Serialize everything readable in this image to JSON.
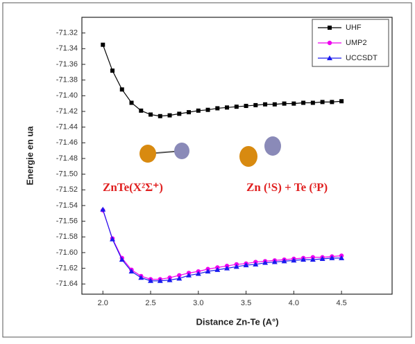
{
  "chart_data": {
    "type": "line",
    "x_label": "Distance Zn-Te (A°)",
    "y_label": "Energie en ua",
    "x": [
      2.0,
      2.1,
      2.2,
      2.3,
      2.4,
      2.5,
      2.6,
      2.7,
      2.8,
      2.9,
      3.0,
      3.1,
      3.2,
      3.3,
      3.4,
      3.5,
      3.6,
      3.7,
      3.8,
      3.9,
      4.0,
      4.1,
      4.2,
      4.3,
      4.4,
      4.5
    ],
    "series": [
      {
        "name": "UHF",
        "color": "#000000",
        "marker": "square",
        "values": [
          -71.335,
          -71.368,
          -71.392,
          -71.409,
          -71.419,
          -71.424,
          -71.426,
          -71.425,
          -71.423,
          -71.421,
          -71.419,
          -71.418,
          -71.416,
          -71.415,
          -71.414,
          -71.413,
          -71.412,
          -71.411,
          -71.411,
          -71.41,
          -71.41,
          -71.409,
          -71.409,
          -71.408,
          -71.408,
          -71.407
        ]
      },
      {
        "name": "UMP2",
        "color": "#ee00ee",
        "marker": "circle",
        "values": [
          -71.546,
          -71.582,
          -71.607,
          -71.622,
          -71.63,
          -71.634,
          -71.634,
          -71.632,
          -71.629,
          -71.626,
          -71.624,
          -71.621,
          -71.619,
          -71.617,
          -71.615,
          -71.614,
          -71.612,
          -71.611,
          -71.61,
          -71.609,
          -71.608,
          -71.607,
          -71.606,
          -71.606,
          -71.605,
          -71.604
        ]
      },
      {
        "name": "UCCSDT",
        "color": "#1a1aee",
        "marker": "triangle",
        "values": [
          -71.545,
          -71.583,
          -71.609,
          -71.624,
          -71.632,
          -71.636,
          -71.636,
          -71.635,
          -71.633,
          -71.629,
          -71.627,
          -71.624,
          -71.622,
          -71.62,
          -71.618,
          -71.616,
          -71.615,
          -71.613,
          -71.612,
          -71.611,
          -71.61,
          -71.609,
          -71.609,
          -71.608,
          -71.607,
          -71.607
        ]
      }
    ],
    "xlim": [
      1.78,
      5.03
    ],
    "ylim": [
      -71.653,
      -71.3
    ],
    "xticks": [
      {
        "value": 2,
        "label": "2.0"
      },
      2.5,
      {
        "value": 3,
        "label": "3.0"
      },
      3.5,
      {
        "value": 4,
        "label": "4.0"
      },
      4.5
    ],
    "yticks": [
      -71.32,
      -71.34,
      -71.36,
      -71.38,
      {
        "value": -71.4,
        "label": "-71.40"
      },
      -71.42,
      -71.44,
      -71.46,
      -71.48,
      {
        "value": -71.5,
        "label": "-71.50"
      },
      -71.52,
      -71.54,
      -71.56,
      -71.58,
      {
        "value": -71.6,
        "label": "-71.60"
      },
      -71.62,
      -71.64
    ],
    "legend": "upper right",
    "annotations": [
      {
        "text": "ZnTe(X²Σ⁺)",
        "color": "#e02020"
      },
      {
        "text": "Zn (¹S) + Te (³P)",
        "color": "#e02020"
      }
    ]
  }
}
